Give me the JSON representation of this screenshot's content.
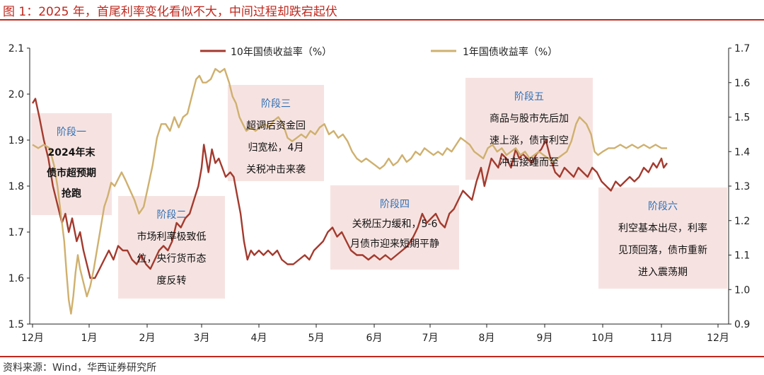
{
  "figure_title": "图 1：2025 年，首尾利率变化看似不大，中间过程却跌宕起伏",
  "source": "资料来源：Wind，华西证券研究所",
  "colors": {
    "red": "#a33a2e",
    "gold": "#cfb06e",
    "box": "#f6e3e1",
    "accent": "#c0281e",
    "label": "#2f6fb5"
  },
  "chart_data": {
    "type": "line",
    "title": "",
    "xlabel": "",
    "ylabel": "",
    "x_ticks": [
      "12月",
      "1月",
      "2月",
      "3月",
      "4月",
      "5月",
      "6月",
      "7月",
      "8月",
      "9月",
      "10月",
      "11月",
      "12月"
    ],
    "ylim": [
      1.5,
      2.1
    ],
    "y2lim": [
      0.9,
      1.7
    ],
    "y_ticks": [
      "1.5",
      "1.6",
      "1.7",
      "1.8",
      "1.9",
      "2.0",
      "2.1"
    ],
    "y2_ticks": [
      "0.9",
      "1.0",
      "1.1",
      "1.2",
      "1.3",
      "1.4",
      "1.5",
      "1.6",
      "1.7"
    ],
    "legend_position": "top-center",
    "series": [
      {
        "name": "10年国债收益率（%）",
        "axis": "left",
        "color": "#a33a2e",
        "values": [
          [
            0,
            1.98
          ],
          [
            0.05,
            1.99
          ],
          [
            0.12,
            1.95
          ],
          [
            0.2,
            1.9
          ],
          [
            0.28,
            1.86
          ],
          [
            0.36,
            1.8
          ],
          [
            0.44,
            1.76
          ],
          [
            0.52,
            1.72
          ],
          [
            0.58,
            1.74
          ],
          [
            0.64,
            1.7
          ],
          [
            0.7,
            1.73
          ],
          [
            0.78,
            1.68
          ],
          [
            0.84,
            1.7
          ],
          [
            0.9,
            1.66
          ],
          [
            0.96,
            1.63
          ],
          [
            1.02,
            1.6
          ],
          [
            1.1,
            1.6
          ],
          [
            1.18,
            1.62
          ],
          [
            1.26,
            1.64
          ],
          [
            1.34,
            1.66
          ],
          [
            1.42,
            1.64
          ],
          [
            1.5,
            1.67
          ],
          [
            1.58,
            1.66
          ],
          [
            1.66,
            1.66
          ],
          [
            1.74,
            1.64
          ],
          [
            1.82,
            1.63
          ],
          [
            1.9,
            1.65
          ],
          [
            1.98,
            1.63
          ],
          [
            2.06,
            1.62
          ],
          [
            2.14,
            1.64
          ],
          [
            2.22,
            1.66
          ],
          [
            2.3,
            1.67
          ],
          [
            2.38,
            1.66
          ],
          [
            2.46,
            1.68
          ],
          [
            2.54,
            1.72
          ],
          [
            2.62,
            1.71
          ],
          [
            2.7,
            1.73
          ],
          [
            2.78,
            1.74
          ],
          [
            2.86,
            1.77
          ],
          [
            2.94,
            1.8
          ],
          [
            3.0,
            1.84
          ],
          [
            3.04,
            1.89
          ],
          [
            3.08,
            1.86
          ],
          [
            3.12,
            1.83
          ],
          [
            3.18,
            1.88
          ],
          [
            3.24,
            1.85
          ],
          [
            3.3,
            1.86
          ],
          [
            3.36,
            1.84
          ],
          [
            3.42,
            1.82
          ],
          [
            3.5,
            1.83
          ],
          [
            3.56,
            1.82
          ],
          [
            3.62,
            1.78
          ],
          [
            3.68,
            1.74
          ],
          [
            3.74,
            1.68
          ],
          [
            3.8,
            1.64
          ],
          [
            3.86,
            1.66
          ],
          [
            3.92,
            1.65
          ],
          [
            4.0,
            1.66
          ],
          [
            4.08,
            1.65
          ],
          [
            4.16,
            1.66
          ],
          [
            4.24,
            1.65
          ],
          [
            4.32,
            1.66
          ],
          [
            4.4,
            1.64
          ],
          [
            4.5,
            1.63
          ],
          [
            4.6,
            1.63
          ],
          [
            4.7,
            1.64
          ],
          [
            4.8,
            1.65
          ],
          [
            4.88,
            1.64
          ],
          [
            4.96,
            1.66
          ],
          [
            5.04,
            1.67
          ],
          [
            5.12,
            1.68
          ],
          [
            5.2,
            1.7
          ],
          [
            5.28,
            1.71
          ],
          [
            5.36,
            1.69
          ],
          [
            5.44,
            1.7
          ],
          [
            5.52,
            1.68
          ],
          [
            5.6,
            1.66
          ],
          [
            5.7,
            1.65
          ],
          [
            5.8,
            1.65
          ],
          [
            5.9,
            1.64
          ],
          [
            6.0,
            1.65
          ],
          [
            6.1,
            1.64
          ],
          [
            6.2,
            1.65
          ],
          [
            6.3,
            1.64
          ],
          [
            6.4,
            1.65
          ],
          [
            6.5,
            1.66
          ],
          [
            6.6,
            1.67
          ],
          [
            6.7,
            1.69
          ],
          [
            6.78,
            1.71
          ],
          [
            6.86,
            1.74
          ],
          [
            6.94,
            1.72
          ],
          [
            7.02,
            1.73
          ],
          [
            7.1,
            1.74
          ],
          [
            7.18,
            1.72
          ],
          [
            7.26,
            1.71
          ],
          [
            7.34,
            1.74
          ],
          [
            7.42,
            1.75
          ],
          [
            7.5,
            1.77
          ],
          [
            7.58,
            1.79
          ],
          [
            7.66,
            1.78
          ],
          [
            7.74,
            1.77
          ],
          [
            7.82,
            1.81
          ],
          [
            7.9,
            1.84
          ],
          [
            7.96,
            1.8
          ],
          [
            8.02,
            1.83
          ],
          [
            8.08,
            1.86
          ],
          [
            8.14,
            1.85
          ],
          [
            8.2,
            1.84
          ],
          [
            8.26,
            1.87
          ],
          [
            8.34,
            1.86
          ],
          [
            8.42,
            1.84
          ],
          [
            8.5,
            1.88
          ],
          [
            8.56,
            1.86
          ],
          [
            8.62,
            1.87
          ],
          [
            8.7,
            1.86
          ],
          [
            8.78,
            1.85
          ],
          [
            8.86,
            1.87
          ],
          [
            8.94,
            1.88
          ],
          [
            9.02,
            1.9
          ],
          [
            9.1,
            1.86
          ],
          [
            9.18,
            1.83
          ],
          [
            9.26,
            1.82
          ],
          [
            9.34,
            1.84
          ],
          [
            9.42,
            1.83
          ],
          [
            9.5,
            1.82
          ],
          [
            9.58,
            1.84
          ],
          [
            9.66,
            1.83
          ],
          [
            9.74,
            1.82
          ],
          [
            9.82,
            1.84
          ],
          [
            9.9,
            1.83
          ],
          [
            9.98,
            1.81
          ],
          [
            10.06,
            1.8
          ],
          [
            10.14,
            1.79
          ],
          [
            10.22,
            1.81
          ],
          [
            10.3,
            1.8
          ],
          [
            10.38,
            1.81
          ],
          [
            10.46,
            1.82
          ],
          [
            10.54,
            1.81
          ],
          [
            10.62,
            1.82
          ],
          [
            10.7,
            1.84
          ],
          [
            10.78,
            1.83
          ],
          [
            10.86,
            1.85
          ],
          [
            10.92,
            1.84
          ],
          [
            11.0,
            1.86
          ],
          [
            11.04,
            1.84
          ],
          [
            11.1,
            1.85
          ]
        ]
      },
      {
        "name": "1年国债收益率（%）",
        "axis": "right",
        "color": "#cfb06e",
        "values": [
          [
            0,
            1.42
          ],
          [
            0.1,
            1.41
          ],
          [
            0.2,
            1.42
          ],
          [
            0.3,
            1.41
          ],
          [
            0.38,
            1.36
          ],
          [
            0.44,
            1.3
          ],
          [
            0.5,
            1.22
          ],
          [
            0.56,
            1.14
          ],
          [
            0.6,
            1.05
          ],
          [
            0.64,
            0.97
          ],
          [
            0.68,
            0.93
          ],
          [
            0.72,
            0.98
          ],
          [
            0.76,
            1.05
          ],
          [
            0.8,
            1.1
          ],
          [
            0.84,
            1.06
          ],
          [
            0.9,
            1.02
          ],
          [
            0.96,
            0.98
          ],
          [
            1.02,
            1.01
          ],
          [
            1.08,
            1.06
          ],
          [
            1.14,
            1.12
          ],
          [
            1.2,
            1.18
          ],
          [
            1.26,
            1.24
          ],
          [
            1.32,
            1.27
          ],
          [
            1.38,
            1.31
          ],
          [
            1.44,
            1.3
          ],
          [
            1.5,
            1.32
          ],
          [
            1.56,
            1.34
          ],
          [
            1.62,
            1.32
          ],
          [
            1.7,
            1.29
          ],
          [
            1.78,
            1.26
          ],
          [
            1.86,
            1.22
          ],
          [
            1.94,
            1.24
          ],
          [
            2.02,
            1.3
          ],
          [
            2.1,
            1.36
          ],
          [
            2.18,
            1.44
          ],
          [
            2.26,
            1.48
          ],
          [
            2.34,
            1.48
          ],
          [
            2.42,
            1.46
          ],
          [
            2.5,
            1.5
          ],
          [
            2.58,
            1.47
          ],
          [
            2.66,
            1.5
          ],
          [
            2.74,
            1.51
          ],
          [
            2.82,
            1.56
          ],
          [
            2.9,
            1.61
          ],
          [
            2.96,
            1.62
          ],
          [
            3.02,
            1.6
          ],
          [
            3.08,
            1.6
          ],
          [
            3.16,
            1.61
          ],
          [
            3.24,
            1.64
          ],
          [
            3.32,
            1.63
          ],
          [
            3.4,
            1.64
          ],
          [
            3.48,
            1.6
          ],
          [
            3.54,
            1.56
          ],
          [
            3.6,
            1.54
          ],
          [
            3.66,
            1.5
          ],
          [
            3.72,
            1.48
          ],
          [
            3.78,
            1.46
          ],
          [
            3.86,
            1.47
          ],
          [
            3.94,
            1.46
          ],
          [
            4.02,
            1.47
          ],
          [
            4.1,
            1.48
          ],
          [
            4.18,
            1.47
          ],
          [
            4.26,
            1.49
          ],
          [
            4.34,
            1.5
          ],
          [
            4.42,
            1.48
          ],
          [
            4.5,
            1.44
          ],
          [
            4.58,
            1.43
          ],
          [
            4.66,
            1.44
          ],
          [
            4.74,
            1.45
          ],
          [
            4.82,
            1.44
          ],
          [
            4.9,
            1.46
          ],
          [
            4.98,
            1.45
          ],
          [
            5.06,
            1.47
          ],
          [
            5.14,
            1.48
          ],
          [
            5.22,
            1.45
          ],
          [
            5.3,
            1.46
          ],
          [
            5.38,
            1.44
          ],
          [
            5.46,
            1.45
          ],
          [
            5.54,
            1.43
          ],
          [
            5.62,
            1.4
          ],
          [
            5.7,
            1.38
          ],
          [
            5.78,
            1.37
          ],
          [
            5.86,
            1.38
          ],
          [
            5.94,
            1.37
          ],
          [
            6.02,
            1.36
          ],
          [
            6.1,
            1.35
          ],
          [
            6.18,
            1.36
          ],
          [
            6.26,
            1.38
          ],
          [
            6.34,
            1.36
          ],
          [
            6.42,
            1.37
          ],
          [
            6.5,
            1.39
          ],
          [
            6.58,
            1.37
          ],
          [
            6.66,
            1.38
          ],
          [
            6.74,
            1.4
          ],
          [
            6.82,
            1.39
          ],
          [
            6.9,
            1.41
          ],
          [
            6.98,
            1.4
          ],
          [
            7.06,
            1.39
          ],
          [
            7.14,
            1.4
          ],
          [
            7.22,
            1.39
          ],
          [
            7.3,
            1.41
          ],
          [
            7.38,
            1.4
          ],
          [
            7.46,
            1.42
          ],
          [
            7.54,
            1.44
          ],
          [
            7.62,
            1.43
          ],
          [
            7.7,
            1.42
          ],
          [
            7.78,
            1.4
          ],
          [
            7.86,
            1.39
          ],
          [
            7.94,
            1.38
          ],
          [
            8.02,
            1.41
          ],
          [
            8.1,
            1.42
          ],
          [
            8.18,
            1.4
          ],
          [
            8.26,
            1.41
          ],
          [
            8.34,
            1.39
          ],
          [
            8.42,
            1.4
          ],
          [
            8.5,
            1.41
          ],
          [
            8.58,
            1.39
          ],
          [
            8.66,
            1.4
          ],
          [
            8.74,
            1.38
          ],
          [
            8.82,
            1.39
          ],
          [
            8.9,
            1.4
          ],
          [
            8.98,
            1.39
          ],
          [
            9.06,
            1.38
          ],
          [
            9.14,
            1.37
          ],
          [
            9.22,
            1.38
          ],
          [
            9.3,
            1.39
          ],
          [
            9.38,
            1.4
          ],
          [
            9.46,
            1.43
          ],
          [
            9.54,
            1.48
          ],
          [
            9.6,
            1.5
          ],
          [
            9.66,
            1.49
          ],
          [
            9.72,
            1.48
          ],
          [
            9.8,
            1.45
          ],
          [
            9.86,
            1.4
          ],
          [
            9.92,
            1.39
          ],
          [
            10.0,
            1.4
          ],
          [
            10.1,
            1.41
          ],
          [
            10.2,
            1.41
          ],
          [
            10.3,
            1.42
          ],
          [
            10.4,
            1.41
          ],
          [
            10.5,
            1.42
          ],
          [
            10.6,
            1.41
          ],
          [
            10.7,
            1.42
          ],
          [
            10.8,
            1.41
          ],
          [
            10.9,
            1.42
          ],
          [
            11.0,
            1.41
          ],
          [
            11.1,
            1.41
          ]
        ]
      }
    ],
    "annotations": [
      {
        "title": "阶段一",
        "lines": [
          "2024年末",
          "债市超预期",
          "抢跑"
        ],
        "bold": true
      },
      {
        "title": "阶段二",
        "lines": [
          "市场利率极致低",
          "位，央行货币态",
          "度反转"
        ],
        "bold": false
      },
      {
        "title": "阶段三",
        "lines": [
          "超调后资金回",
          "归宽松，4月",
          "关税冲击来袭"
        ],
        "bold": false
      },
      {
        "title": "阶段四",
        "lines": [
          "关税压力缓和，5-6",
          "月债市迎来短期平静"
        ],
        "bold": false
      },
      {
        "title": "阶段五",
        "lines": [
          "商品与股市先后加",
          "速上涨，债市利空",
          "冲击接踵而至"
        ],
        "bold": false
      },
      {
        "title": "阶段六",
        "lines": [
          "利空基本出尽，利率",
          "见顶回落，债市重新",
          "进入震荡期"
        ],
        "bold": false
      }
    ]
  }
}
